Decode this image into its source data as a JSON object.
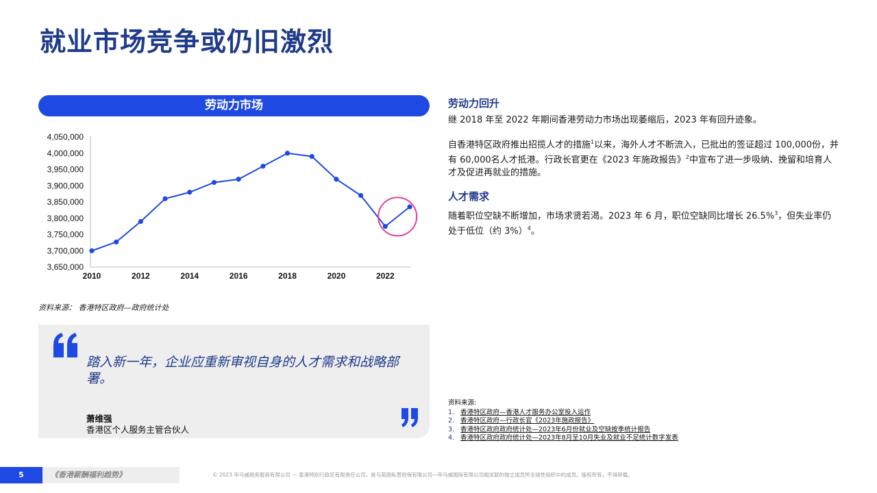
{
  "page": {
    "title": "就业市场竞争或仍旧激烈"
  },
  "chart_section": {
    "heading": "劳动力市场",
    "source": "资料来源：  香港特区政府—政府统计处"
  },
  "chart_data": {
    "type": "line",
    "title": "劳动力市场",
    "xlabel": "",
    "ylabel": "",
    "x": [
      2010,
      2011,
      2012,
      2013,
      2014,
      2015,
      2016,
      2017,
      2018,
      2019,
      2020,
      2021,
      2022,
      2023
    ],
    "series": [
      {
        "values": [
          3700000,
          3727000,
          3790000,
          3860000,
          3880000,
          3910000,
          3920000,
          3960000,
          4000000,
          3990000,
          3920000,
          3870000,
          3775000,
          3835000
        ]
      }
    ],
    "ylim": [
      3650000,
      4050000
    ],
    "yticks": [
      3650000,
      3700000,
      3750000,
      3800000,
      3850000,
      3900000,
      3950000,
      4000000,
      4050000
    ],
    "ytick_labels": [
      "3,650,000",
      "3,700,000",
      "3,750,000",
      "3,800,000",
      "3,850,000",
      "3,900,000",
      "3,950,000",
      "4,000,000",
      "4,050,000"
    ],
    "xticks": [
      2010,
      2012,
      2014,
      2016,
      2018,
      2020,
      2022
    ],
    "xtick_labels": [
      "2010",
      "2012",
      "2014",
      "2016",
      "2018",
      "2020",
      "2022"
    ],
    "grid": false,
    "highlight": {
      "x": [
        2022,
        2023
      ],
      "color": "#e53c96"
    },
    "line_color": "#1e49e2"
  },
  "quote": {
    "text": "踏入新一年，企业应重新审视自身的人才需求和战略部署。",
    "author": "萧维强",
    "role": "香港区个人服务主管合伙人"
  },
  "right": {
    "section1_heading": "劳动力回升",
    "section1_p1": "继 2018 年至 2022 年期间香港劳动力市场出现萎缩后，2023 年有回升迹象。",
    "section1_p2_a": "自香港特区政府推出招揽人才的措施",
    "section1_p2_sup1": "1",
    "section1_p2_b": "以来，海外人才不断流入，已批出的签证超过 100,000份，并有 60,000名人才抵港。行政长官更在《2023 年施政报告》",
    "section1_p2_sup2": "2",
    "section1_p2_c": "中宣布了进一步吸纳、挽留和培育人才及促进再就业的措施。",
    "section2_heading": "人才需求",
    "section2_p_a": "随着职位空缺不断增加，市场求贤若渴。2023 年 6 月，职位空缺同比增长 26.5%",
    "section2_p_sup3": "3",
    "section2_p_b": "，但失业率仍处于低位（约 3%）",
    "section2_p_sup4": "4",
    "section2_p_c": "。"
  },
  "sources": {
    "label": "资料来源:",
    "items": [
      {
        "num": "1.",
        "text": "香港特区政府—香港人才服务办公室投入运作"
      },
      {
        "num": "2.",
        "text": "香港特区政府—行政长官《2023年施政报告》"
      },
      {
        "num": "3.",
        "text": "香港特区政府政府统计处—2023年6月份就业及空缺按季统计报告"
      },
      {
        "num": "4.",
        "text": "香港特区政府政府统计处—2023年8月至10月失业及就业不足统计数字发表"
      }
    ]
  },
  "footer": {
    "page_number": "5",
    "publication": "《香港薪酬福利趋势》",
    "copyright": "© 2023 毕马威税务服务有限公司 — 香港特别行政区有限责任公司，是与英国私营担保有限公司—毕马威国际有限公司相关联的独立成员所全球性组织中的成员。版权所有，不得转载。"
  }
}
